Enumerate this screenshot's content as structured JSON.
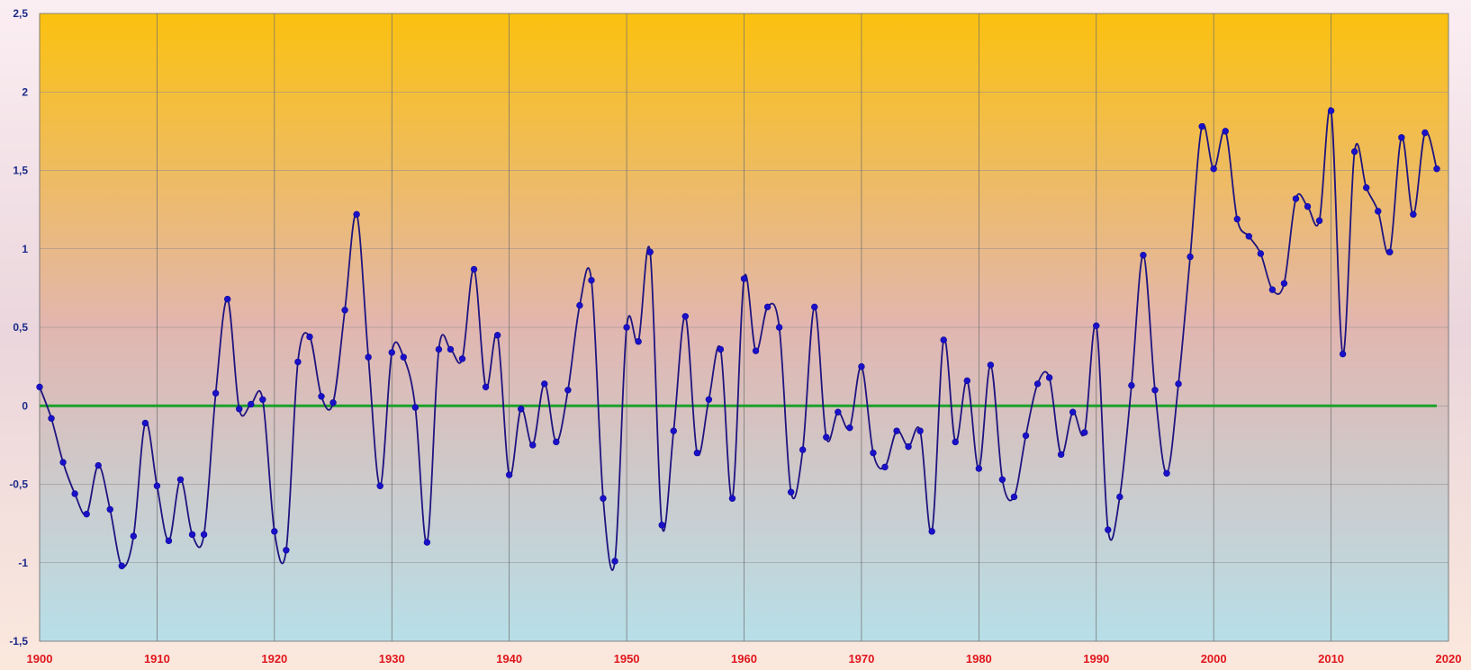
{
  "chart_data": {
    "type": "line",
    "title": "",
    "xlabel": "",
    "ylabel": "",
    "xlim": [
      1900,
      2020
    ],
    "ylim": [
      -1.5,
      2.5
    ],
    "x_ticks": [
      "1900",
      "1910",
      "1920",
      "1930",
      "1940",
      "1950",
      "1960",
      "1970",
      "1980",
      "1990",
      "2000",
      "2010",
      "2020"
    ],
    "y_ticks": [
      "2,5",
      "2",
      "1,5",
      "1",
      "0,5",
      "0",
      "-0,5",
      "-1",
      "-1,5"
    ],
    "grid": true,
    "smoothed": true,
    "series": [
      {
        "color": "#1a10c8",
        "x": [
          1900,
          1901,
          1902,
          1903,
          1904,
          1905,
          1906,
          1907,
          1908,
          1909,
          1910,
          1911,
          1912,
          1913,
          1914,
          1915,
          1916,
          1917,
          1918,
          1919,
          1920,
          1921,
          1922,
          1923,
          1924,
          1925,
          1926,
          1927,
          1928,
          1929,
          1930,
          1931,
          1932,
          1933,
          1934,
          1935,
          1936,
          1937,
          1938,
          1939,
          1940,
          1941,
          1942,
          1943,
          1944,
          1945,
          1946,
          1947,
          1948,
          1949,
          1950,
          1951,
          1952,
          1953,
          1954,
          1955,
          1956,
          1957,
          1958,
          1959,
          1960,
          1961,
          1962,
          1963,
          1964,
          1965,
          1966,
          1967,
          1968,
          1969,
          1970,
          1971,
          1972,
          1973,
          1974,
          1975,
          1976,
          1977,
          1978,
          1979,
          1980,
          1981,
          1982,
          1983,
          1984,
          1985,
          1986,
          1987,
          1988,
          1989,
          1990,
          1991,
          1992,
          1993,
          1994,
          1995,
          1996,
          1997,
          1998,
          1999,
          2000,
          2001,
          2002,
          2003,
          2004,
          2005,
          2006,
          2007,
          2008,
          2009,
          2010,
          2011,
          2012,
          2013,
          2014,
          2015,
          2016,
          2017,
          2018,
          2019
        ],
        "y": [
          0.12,
          -0.08,
          -0.36,
          -0.56,
          -0.69,
          -0.38,
          -0.66,
          -1.02,
          -0.83,
          -0.11,
          -0.51,
          -0.86,
          -0.47,
          -0.82,
          -0.82,
          0.08,
          0.68,
          -0.02,
          0.01,
          0.04,
          -0.8,
          -0.92,
          0.28,
          0.44,
          0.06,
          0.02,
          0.61,
          1.22,
          0.31,
          -0.51,
          0.34,
          0.31,
          -0.01,
          -0.87,
          0.36,
          0.36,
          0.3,
          0.87,
          0.12,
          0.45,
          -0.44,
          -0.02,
          -0.25,
          0.14,
          -0.23,
          0.1,
          0.64,
          0.8,
          -0.59,
          -0.99,
          0.5,
          0.41,
          0.98,
          -0.76,
          -0.16,
          0.57,
          -0.3,
          0.04,
          0.36,
          -0.59,
          0.81,
          0.35,
          0.63,
          0.5,
          -0.55,
          -0.28,
          0.63,
          -0.2,
          -0.04,
          -0.14,
          0.25,
          -0.3,
          -0.39,
          -0.16,
          -0.26,
          -0.16,
          -0.8,
          0.42,
          -0.23,
          0.16,
          -0.4,
          0.26,
          -0.47,
          -0.58,
          -0.19,
          0.14,
          0.18,
          -0.31,
          -0.04,
          -0.17,
          0.51,
          -0.79,
          -0.58,
          0.13,
          0.96,
          0.1,
          -0.43,
          0.14,
          0.95,
          1.78,
          1.51,
          1.75,
          1.19,
          1.08,
          0.97,
          0.74,
          0.78,
          1.32,
          1.27,
          1.18,
          1.88,
          0.33,
          1.62,
          1.39,
          1.24,
          0.98,
          1.71,
          1.22,
          1.74,
          1.51
        ]
      },
      {
        "color": "#1ca02c",
        "x": [
          1900,
          2019
        ],
        "y": [
          0,
          0
        ]
      }
    ],
    "background_gradient": [
      "#fbc10f",
      "#e2b6b0",
      "#b7dfe8"
    ]
  }
}
